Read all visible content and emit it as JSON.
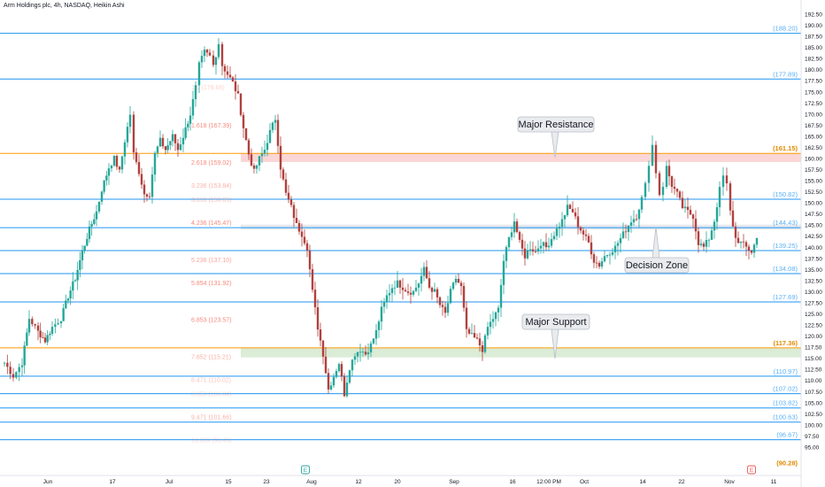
{
  "title": "Arm Holdings plc, 4h, NASDAQ, Heikin Ashi",
  "colors": {
    "up": "#26a69a",
    "down": "#b0413e",
    "level": "#2196f3",
    "level_text": "#2196f3",
    "key_level": "#ff9800",
    "fib": "#f57c6c",
    "resistance_zone": "#f9d3d1",
    "support_zone": "#d7ead3",
    "decision_zone": "#e7e9ee",
    "axis_text": "#131722",
    "callout_bg": "#e9ebee",
    "callout_border": "#b8bec8"
  },
  "chart_data": {
    "type": "candlestick",
    "title": "Arm Holdings plc, 4h, NASDAQ, Heikin Ashi",
    "ylim": [
      90,
      190
    ],
    "y_ticks": [
      "95.00",
      "97.50",
      "100.00",
      "102.50",
      "105.00",
      "107.50",
      "110.00",
      "112.50",
      "115.00",
      "117.50",
      "120.00",
      "122.50",
      "125.00",
      "127.50",
      "130.00",
      "132.50",
      "135.00",
      "137.50",
      "140.00",
      "142.50",
      "145.00",
      "147.50",
      "150.00",
      "152.50",
      "155.00",
      "157.50",
      "160.00",
      "162.50",
      "165.00",
      "167.50",
      "170.00",
      "172.50",
      "175.00",
      "177.50",
      "180.00",
      "182.50",
      "185.00",
      "187.50",
      "190.00",
      "192.50"
    ],
    "x_ticks": [
      "Jun",
      "17",
      "Jul",
      "15",
      "23",
      "Aug",
      "12",
      "20",
      "Sep",
      "16",
      "12:00 PM",
      "Oct",
      "14",
      "22",
      "Nov",
      "11"
    ],
    "horizontal_levels": [
      {
        "label": "(188.20)",
        "value": 188.2,
        "key": false
      },
      {
        "label": "(177.89)",
        "value": 177.89,
        "key": false
      },
      {
        "label": "(161.15)",
        "value": 161.15,
        "key": true
      },
      {
        "label": "(150.82)",
        "value": 150.82,
        "key": false
      },
      {
        "label": "(144.43)",
        "value": 144.43,
        "key": false
      },
      {
        "label": "(139.25)",
        "value": 139.25,
        "key": false
      },
      {
        "label": "(134.08)",
        "value": 134.08,
        "key": false
      },
      {
        "label": "(127.69)",
        "value": 127.69,
        "key": false
      },
      {
        "label": "(117.36)",
        "value": 117.36,
        "key": true
      },
      {
        "label": "(110.97)",
        "value": 110.97,
        "key": false
      },
      {
        "label": "(107.02)",
        "value": 107.02,
        "key": false
      },
      {
        "label": "(103.82)",
        "value": 103.82,
        "key": false
      },
      {
        "label": "(100.63)",
        "value": 100.63,
        "key": false
      },
      {
        "label": "(96.67)",
        "value": 96.67,
        "key": false
      },
      {
        "label": "(90.28)",
        "value": 90.28,
        "key": true
      }
    ],
    "fib_labels": [
      {
        "text": "1.0 (178.66)",
        "value": 175.9,
        "opacity": 0.35
      },
      {
        "text": "1.618 (167.39)",
        "value": 167.39,
        "opacity": 0.9
      },
      {
        "text": "2.618 (159.02)",
        "value": 159.02,
        "opacity": 0.9
      },
      {
        "text": "3.236 (153.84)",
        "value": 153.84,
        "opacity": 0.6
      },
      {
        "text": "3.618 (150.65)",
        "value": 150.65,
        "opacity": 0.45
      },
      {
        "text": "4.236 (145.47)",
        "value": 145.47,
        "opacity": 0.9
      },
      {
        "text": "5.236 (137.10)",
        "value": 137.1,
        "opacity": 0.7
      },
      {
        "text": "5.854 (131.92)",
        "value": 131.92,
        "opacity": 0.9
      },
      {
        "text": "6.853 (123.57)",
        "value": 123.57,
        "opacity": 0.9
      },
      {
        "text": "7.852 (115.21)",
        "value": 115.21,
        "opacity": 0.6
      },
      {
        "text": "8.471 (110.02)",
        "value": 110.02,
        "opacity": 0.45
      },
      {
        "text": "8.853 (106.84)",
        "value": 106.84,
        "opacity": 0.3
      },
      {
        "text": "9.471 (101.66)",
        "value": 101.66,
        "opacity": 0.6
      },
      {
        "text": "10.089 (96.49)",
        "value": 96.49,
        "opacity": 0.3
      }
    ],
    "zones": [
      {
        "name": "resistance",
        "from": 159.2,
        "to": 161.15
      },
      {
        "name": "decision",
        "from": 144.0,
        "to": 145.1
      },
      {
        "name": "support",
        "from": 115.2,
        "to": 117.36
      }
    ],
    "annotations": [
      {
        "text": "Major Resistance",
        "value": 161.15
      },
      {
        "text": "Decision Zone",
        "value": 144.43
      },
      {
        "text": "Major Support",
        "value": 117.36
      }
    ],
    "event_markers": [
      "E",
      "E"
    ],
    "close_path": [
      [
        0,
        114
      ],
      [
        10,
        111
      ],
      [
        20,
        114
      ],
      [
        28,
        124
      ],
      [
        38,
        121
      ],
      [
        46,
        119
      ],
      [
        54,
        122
      ],
      [
        64,
        124
      ],
      [
        72,
        129
      ],
      [
        80,
        133
      ],
      [
        88,
        139
      ],
      [
        96,
        144
      ],
      [
        104,
        148
      ],
      [
        110,
        153
      ],
      [
        118,
        158
      ],
      [
        124,
        160
      ],
      [
        130,
        157
      ],
      [
        136,
        164
      ],
      [
        142,
        170
      ],
      [
        146,
        161
      ],
      [
        152,
        157
      ],
      [
        158,
        152
      ],
      [
        164,
        152
      ],
      [
        170,
        161
      ],
      [
        176,
        164
      ],
      [
        182,
        162
      ],
      [
        190,
        165
      ],
      [
        196,
        162
      ],
      [
        202,
        165
      ],
      [
        210,
        170
      ],
      [
        216,
        176
      ],
      [
        220,
        181
      ],
      [
        226,
        184
      ],
      [
        232,
        183
      ],
      [
        236,
        181
      ],
      [
        242,
        186
      ],
      [
        246,
        181
      ],
      [
        252,
        179
      ],
      [
        258,
        177
      ],
      [
        264,
        174
      ],
      [
        270,
        167
      ],
      [
        276,
        161
      ],
      [
        282,
        157
      ],
      [
        288,
        160
      ],
      [
        294,
        162
      ],
      [
        300,
        166
      ],
      [
        306,
        169
      ],
      [
        312,
        158
      ],
      [
        318,
        152
      ],
      [
        324,
        149
      ],
      [
        330,
        145
      ],
      [
        336,
        143
      ],
      [
        342,
        140
      ],
      [
        348,
        130
      ],
      [
        354,
        122
      ],
      [
        360,
        116
      ],
      [
        366,
        108
      ],
      [
        372,
        111
      ],
      [
        378,
        114
      ],
      [
        384,
        107
      ],
      [
        390,
        113
      ],
      [
        396,
        116
      ],
      [
        402,
        117
      ],
      [
        408,
        116
      ],
      [
        414,
        118
      ],
      [
        420,
        121
      ],
      [
        426,
        126
      ],
      [
        432,
        129
      ],
      [
        438,
        131
      ],
      [
        444,
        132
      ],
      [
        450,
        131
      ],
      [
        456,
        130
      ],
      [
        462,
        130
      ],
      [
        468,
        132
      ],
      [
        474,
        135
      ],
      [
        480,
        131
      ],
      [
        486,
        130
      ],
      [
        492,
        127
      ],
      [
        498,
        125
      ],
      [
        504,
        130
      ],
      [
        510,
        133
      ],
      [
        516,
        131
      ],
      [
        522,
        121
      ],
      [
        528,
        120
      ],
      [
        534,
        119
      ],
      [
        540,
        117
      ],
      [
        546,
        122
      ],
      [
        552,
        124
      ],
      [
        558,
        126
      ],
      [
        564,
        137
      ],
      [
        570,
        142
      ],
      [
        576,
        146
      ],
      [
        582,
        141
      ],
      [
        588,
        138
      ],
      [
        594,
        140
      ],
      [
        600,
        139
      ],
      [
        606,
        141
      ],
      [
        612,
        140
      ],
      [
        618,
        142
      ],
      [
        624,
        144
      ],
      [
        630,
        146
      ],
      [
        636,
        149
      ],
      [
        642,
        148
      ],
      [
        648,
        145
      ],
      [
        654,
        143
      ],
      [
        660,
        141
      ],
      [
        666,
        137
      ],
      [
        672,
        136
      ],
      [
        678,
        138
      ],
      [
        684,
        139
      ],
      [
        690,
        140
      ],
      [
        696,
        142
      ],
      [
        702,
        144
      ],
      [
        708,
        146
      ],
      [
        714,
        147
      ],
      [
        720,
        151
      ],
      [
        724,
        154
      ],
      [
        728,
        159
      ],
      [
        732,
        163
      ],
      [
        736,
        157
      ],
      [
        740,
        152
      ],
      [
        744,
        154
      ],
      [
        748,
        158
      ],
      [
        754,
        154
      ],
      [
        760,
        152
      ],
      [
        766,
        149
      ],
      [
        772,
        148
      ],
      [
        778,
        147
      ],
      [
        784,
        141
      ],
      [
        790,
        140
      ],
      [
        796,
        142
      ],
      [
        802,
        146
      ],
      [
        808,
        153
      ],
      [
        812,
        156
      ],
      [
        816,
        154
      ],
      [
        820,
        148
      ],
      [
        826,
        142
      ],
      [
        832,
        141
      ],
      [
        838,
        140
      ],
      [
        844,
        139
      ],
      [
        850,
        142
      ],
      [
        854,
        143
      ]
    ]
  }
}
